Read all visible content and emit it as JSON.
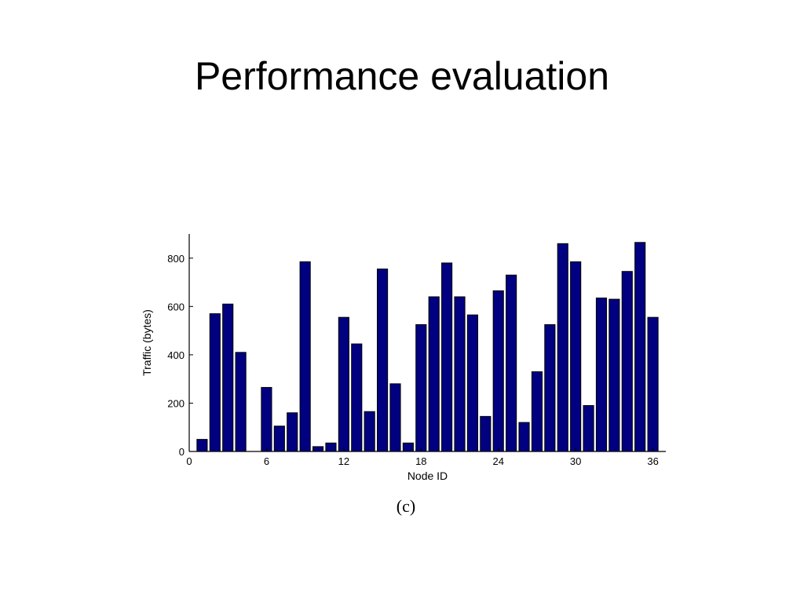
{
  "slide": {
    "title": "Performance evaluation"
  },
  "chart_data": {
    "type": "bar",
    "title": "",
    "caption": "(c)",
    "xlabel": "Node ID",
    "ylabel": "Traffic (bytes)",
    "xlim": [
      0,
      37
    ],
    "ylim": [
      0,
      900
    ],
    "xticks": [
      0,
      6,
      12,
      18,
      24,
      30,
      36
    ],
    "yticks": [
      0,
      200,
      400,
      600,
      800
    ],
    "bar_color": "#000080",
    "grid": false,
    "categories": [
      1,
      2,
      3,
      4,
      5,
      6,
      7,
      8,
      9,
      10,
      11,
      12,
      13,
      14,
      15,
      16,
      17,
      18,
      19,
      20,
      21,
      22,
      23,
      24,
      25,
      26,
      27,
      28,
      29,
      30,
      31,
      32,
      33,
      34,
      35,
      36
    ],
    "values": [
      50,
      570,
      610,
      410,
      0,
      265,
      105,
      160,
      785,
      20,
      35,
      555,
      445,
      165,
      755,
      280,
      35,
      525,
      640,
      780,
      640,
      565,
      145,
      665,
      730,
      120,
      330,
      525,
      860,
      785,
      190,
      635,
      630,
      745,
      865,
      555
    ]
  }
}
